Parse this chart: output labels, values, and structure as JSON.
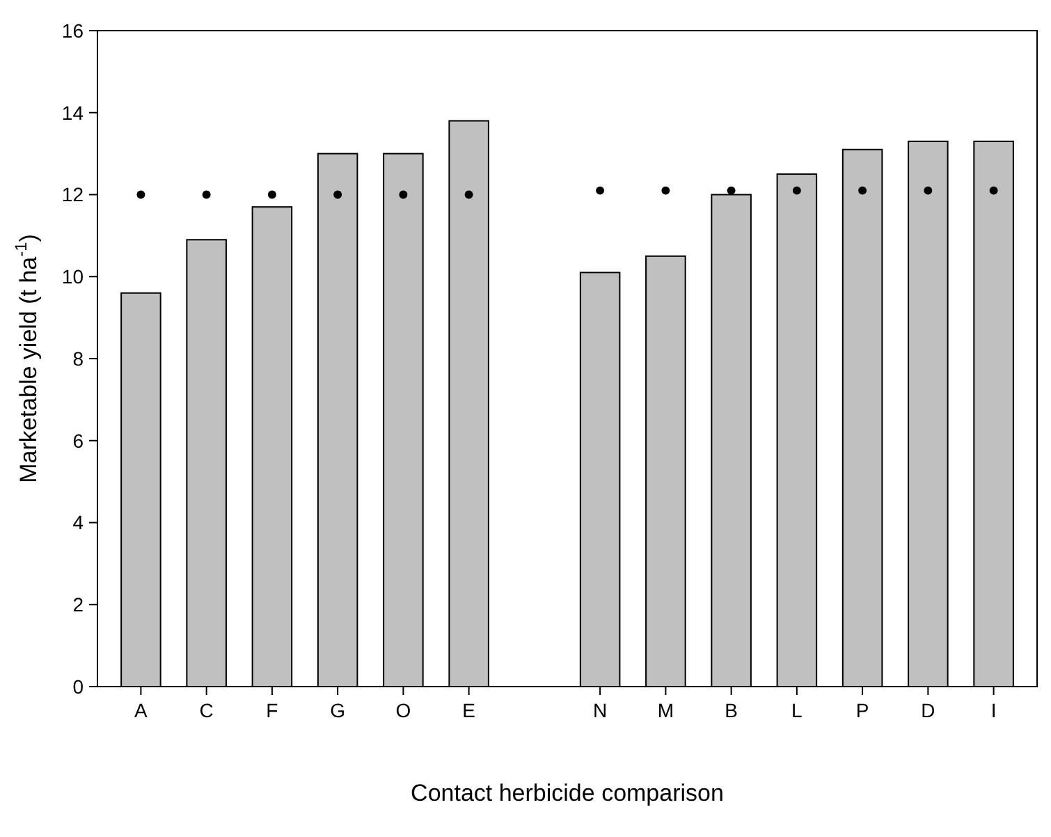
{
  "chart_data": {
    "type": "bar",
    "xlabel": "Contact herbicide comparison",
    "ylabel": "Marketable yield (t ha$^{-1}$)",
    "categories": [
      "A",
      "C",
      "F",
      "G",
      "O",
      "E",
      null,
      "N",
      "M",
      "B",
      "L",
      "P",
      "D",
      "I"
    ],
    "series": [
      {
        "color": "#c0c0c0",
        "values": [
          9.6,
          10.9,
          11.7,
          13.0,
          13.0,
          13.8,
          null,
          10.1,
          10.5,
          12.0,
          12.5,
          13.1,
          13.3,
          13.3
        ]
      },
      {
        "type": "scatter",
        "color": "#000000",
        "marker": "circle",
        "values": [
          12.0,
          12.0,
          12.0,
          12.0,
          12.0,
          12.0,
          null,
          12.1,
          12.1,
          12.1,
          12.1,
          12.1,
          12.1,
          12.1
        ]
      }
    ],
    "ylim": [
      0,
      16
    ],
    "yticks": [
      0,
      2,
      4,
      6,
      8,
      10,
      12,
      14,
      16
    ],
    "grid": false
  }
}
